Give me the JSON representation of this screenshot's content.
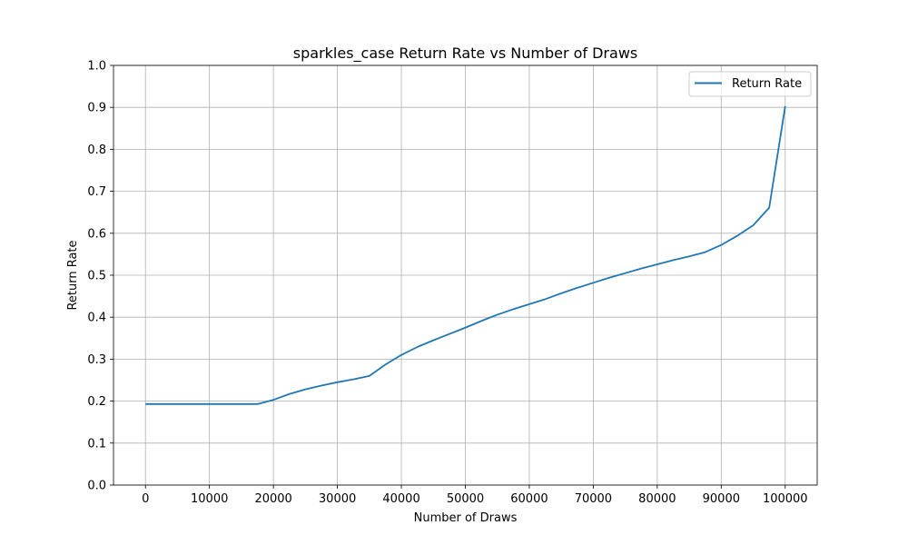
{
  "chart_data": {
    "type": "line",
    "title": "sparkles_case Return Rate vs Number of Draws",
    "xlabel": "Number of Draws",
    "ylabel": "Return Rate",
    "xlim": [
      -5000,
      105000
    ],
    "ylim": [
      0.0,
      1.0
    ],
    "xticks": [
      0,
      10000,
      20000,
      30000,
      40000,
      50000,
      60000,
      70000,
      80000,
      90000,
      100000
    ],
    "xtick_labels": [
      "0",
      "10000",
      "20000",
      "30000",
      "40000",
      "50000",
      "60000",
      "70000",
      "80000",
      "90000",
      "100000"
    ],
    "yticks": [
      0.0,
      0.1,
      0.2,
      0.3,
      0.4,
      0.5,
      0.6,
      0.7,
      0.8,
      0.9,
      1.0
    ],
    "ytick_labels": [
      "0.0",
      "0.1",
      "0.2",
      "0.3",
      "0.4",
      "0.5",
      "0.6",
      "0.7",
      "0.8",
      "0.9",
      "1.0"
    ],
    "grid": true,
    "legend_position": "top-right",
    "series": [
      {
        "name": "Return Rate",
        "color": "#1f77b4",
        "x": [
          0,
          2500,
          5000,
          7500,
          10000,
          12500,
          15000,
          17500,
          20000,
          22500,
          25000,
          27500,
          30000,
          32500,
          35000,
          37500,
          40000,
          42500,
          45000,
          47500,
          50000,
          52500,
          55000,
          57500,
          60000,
          62500,
          65000,
          67500,
          70000,
          72500,
          75000,
          77500,
          80000,
          82500,
          85000,
          87500,
          90000,
          92500,
          95000,
          97500,
          100000
        ],
        "y": [
          0.193,
          0.193,
          0.193,
          0.193,
          0.193,
          0.193,
          0.193,
          0.193,
          0.203,
          0.217,
          0.228,
          0.237,
          0.245,
          0.252,
          0.26,
          0.287,
          0.31,
          0.329,
          0.345,
          0.36,
          0.375,
          0.391,
          0.406,
          0.419,
          0.431,
          0.443,
          0.457,
          0.47,
          0.482,
          0.494,
          0.505,
          0.516,
          0.526,
          0.536,
          0.545,
          0.555,
          0.572,
          0.594,
          0.619,
          0.661,
          0.903
        ]
      }
    ]
  }
}
